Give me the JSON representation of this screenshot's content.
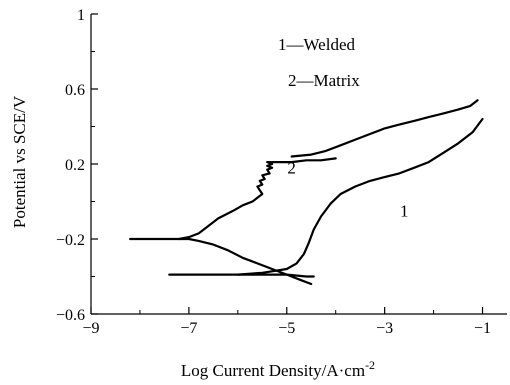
{
  "chart_data": {
    "type": "line",
    "title": "",
    "xlabel": "Log Current Density/A·cm",
    "xlabel_sup": "-2",
    "ylabel": "Potential vs SCE/V",
    "xlim": [
      -9,
      -0.5
    ],
    "ylim": [
      -0.6,
      1.0
    ],
    "xticks": [
      -9,
      -7,
      -5,
      -3,
      -1
    ],
    "xtick_labels": [
      "−9",
      "−7",
      "−5",
      "−3",
      "−1"
    ],
    "yticks": [
      -0.6,
      -0.2,
      0.2,
      0.6,
      1.0
    ],
    "ytick_labels": [
      "−0.6",
      "−0.2",
      "0.2",
      "0.6",
      "1"
    ],
    "grid": false,
    "legend": [
      {
        "number": "1",
        "label": "Welded"
      },
      {
        "number": "2",
        "label": "Matrix"
      }
    ],
    "curve_labels": [
      {
        "text": "1",
        "x": -2.6,
        "y": -0.08
      },
      {
        "text": "2",
        "x": -4.9,
        "y": 0.15
      }
    ],
    "series": [
      {
        "key": "1",
        "x": [
          -7.4,
          -6.5,
          -6.0,
          -5.5,
          -5.0,
          -4.6,
          -4.45
        ],
        "y": [
          -0.39,
          -0.39,
          -0.39,
          -0.39,
          -0.39,
          -0.4,
          -0.4
        ]
      },
      {
        "key": "1",
        "x": [
          -6.0,
          -5.5,
          -5.0,
          -4.8,
          -4.65,
          -4.55,
          -4.45,
          -4.3,
          -4.1,
          -3.9,
          -3.6,
          -3.3,
          -3.0,
          -2.7,
          -2.4,
          -2.1,
          -1.8,
          -1.5,
          -1.2,
          -1.0
        ],
        "y": [
          -0.39,
          -0.38,
          -0.36,
          -0.33,
          -0.28,
          -0.22,
          -0.15,
          -0.08,
          -0.01,
          0.04,
          0.08,
          0.11,
          0.13,
          0.15,
          0.18,
          0.21,
          0.26,
          0.31,
          0.37,
          0.44
        ]
      },
      {
        "key": "2",
        "x": [
          -8.2,
          -7.6,
          -7.2,
          -7.0,
          -6.8,
          -6.5,
          -6.2,
          -5.9,
          -5.6,
          -5.3,
          -5.0,
          -4.7,
          -4.5
        ],
        "y": [
          -0.2,
          -0.2,
          -0.2,
          -0.2,
          -0.21,
          -0.23,
          -0.26,
          -0.3,
          -0.33,
          -0.36,
          -0.39,
          -0.42,
          -0.44
        ]
      },
      {
        "key": "2",
        "x": [
          -7.2,
          -7.0,
          -6.8,
          -6.6,
          -6.4,
          -6.1,
          -5.9,
          -5.7,
          -5.6,
          -5.5,
          -5.55,
          -5.6,
          -5.5,
          -5.55,
          -5.45,
          -5.5,
          -5.35,
          -5.4,
          -5.3,
          -5.4,
          -5.3,
          -5.4,
          -5.2,
          -4.9,
          -4.6,
          -4.3,
          -4.0
        ],
        "y": [
          -0.2,
          -0.19,
          -0.17,
          -0.13,
          -0.09,
          -0.05,
          -0.02,
          0.0,
          0.02,
          0.04,
          0.06,
          0.08,
          0.09,
          0.11,
          0.12,
          0.14,
          0.15,
          0.17,
          0.18,
          0.19,
          0.2,
          0.21,
          0.21,
          0.21,
          0.22,
          0.22,
          0.23
        ]
      },
      {
        "key": "2",
        "x": [
          -4.9,
          -4.5,
          -4.2,
          -3.9,
          -3.6,
          -3.3,
          -3.0,
          -2.7,
          -2.4,
          -2.1,
          -1.8,
          -1.5,
          -1.25,
          -1.1
        ],
        "y": [
          0.24,
          0.25,
          0.27,
          0.3,
          0.33,
          0.36,
          0.39,
          0.41,
          0.43,
          0.45,
          0.47,
          0.49,
          0.51,
          0.54
        ]
      }
    ]
  }
}
